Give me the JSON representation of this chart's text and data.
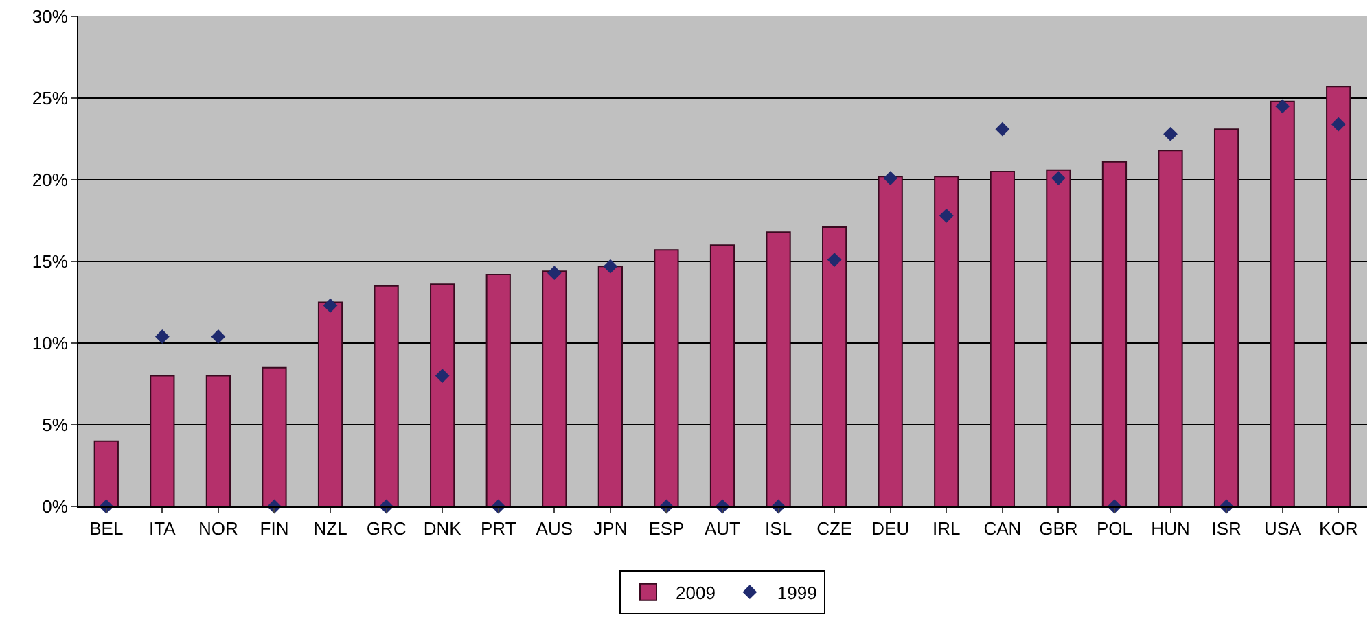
{
  "chart_data": {
    "type": "bar",
    "categories": [
      "BEL",
      "ITA",
      "NOR",
      "FIN",
      "NZL",
      "GRC",
      "DNK",
      "PRT",
      "AUS",
      "JPN",
      "ESP",
      "AUT",
      "ISL",
      "CZE",
      "DEU",
      "IRL",
      "CAN",
      "GBR",
      "POL",
      "HUN",
      "ISR",
      "USA",
      "KOR"
    ],
    "series": [
      {
        "name": "2009",
        "color": "#b5306b",
        "values": [
          4.0,
          8.0,
          8.0,
          8.5,
          12.5,
          13.5,
          13.6,
          14.2,
          14.4,
          14.7,
          15.7,
          16.0,
          16.8,
          17.1,
          20.2,
          20.2,
          20.5,
          20.6,
          21.1,
          21.8,
          23.1,
          24.8,
          25.7
        ]
      },
      {
        "name": "1999",
        "type": "scatter",
        "color": "#1f2a6e",
        "marker": "diamond",
        "values": [
          0,
          10.4,
          10.4,
          0,
          12.3,
          0,
          8.0,
          0,
          14.3,
          14.7,
          0,
          0,
          0,
          15.1,
          20.1,
          17.8,
          23.1,
          20.1,
          0,
          22.8,
          0,
          24.5,
          23.4
        ]
      }
    ],
    "ylim": [
      0,
      30
    ],
    "yticks": [
      {
        "value": 0,
        "label": "0%"
      },
      {
        "value": 5,
        "label": "5%"
      },
      {
        "value": 10,
        "label": "10%"
      },
      {
        "value": 15,
        "label": "15%"
      },
      {
        "value": 20,
        "label": "20%"
      },
      {
        "value": 25,
        "label": "25%"
      },
      {
        "value": 30,
        "label": "30%"
      }
    ],
    "grid": "y",
    "legend": "bottom"
  }
}
